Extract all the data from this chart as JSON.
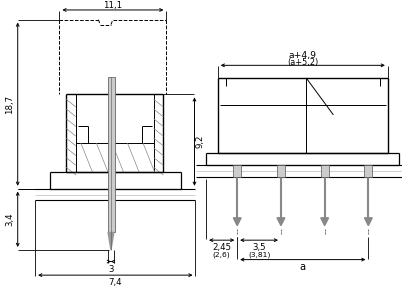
{
  "bg_color": "#ffffff",
  "lc": "#000000",
  "gc": "#999999",
  "hatch_c": "#aaaaaa",
  "fig_width": 4.08,
  "fig_height": 2.87,
  "dpi": 100,
  "left": {
    "dim_11_1": "11,1",
    "dim_18_7": "18,7",
    "dim_9_2": "9,2",
    "dim_3_4": "3,4",
    "dim_3": "3",
    "dim_7_4": "7,4"
  },
  "right": {
    "dim_a49": "a+4,9",
    "dim_a52": "(a+5,2)",
    "dim_2_45": "2,45",
    "dim_2_6": "(2,6)",
    "dim_3_5": "3,5",
    "dim_3_81": "(3,81)",
    "dim_a": "a"
  }
}
